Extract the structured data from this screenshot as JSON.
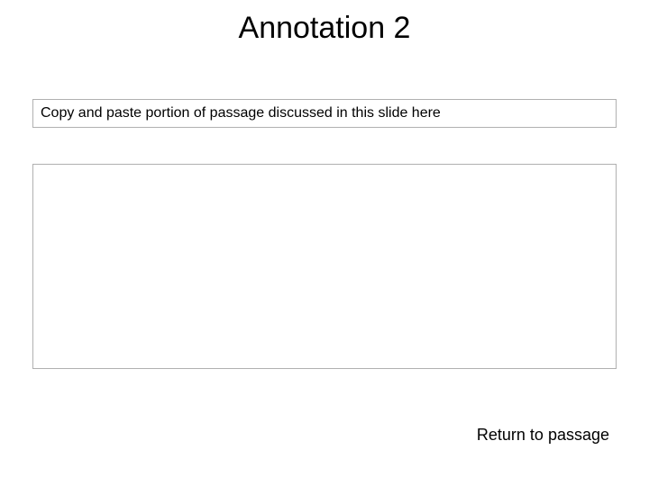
{
  "slide": {
    "title": "Annotation 2",
    "passage_placeholder": "Copy and paste portion of passage discussed in this slide here",
    "annotation_text": "",
    "return_link_label": "Return to passage"
  },
  "style": {
    "background_color": "#ffffff",
    "title_fontsize": 34,
    "title_color": "#000000",
    "box_border_color": "#b0b0b0",
    "placeholder_fontsize": 16,
    "placeholder_color": "#000000",
    "link_fontsize": 18,
    "link_color": "#000000"
  }
}
